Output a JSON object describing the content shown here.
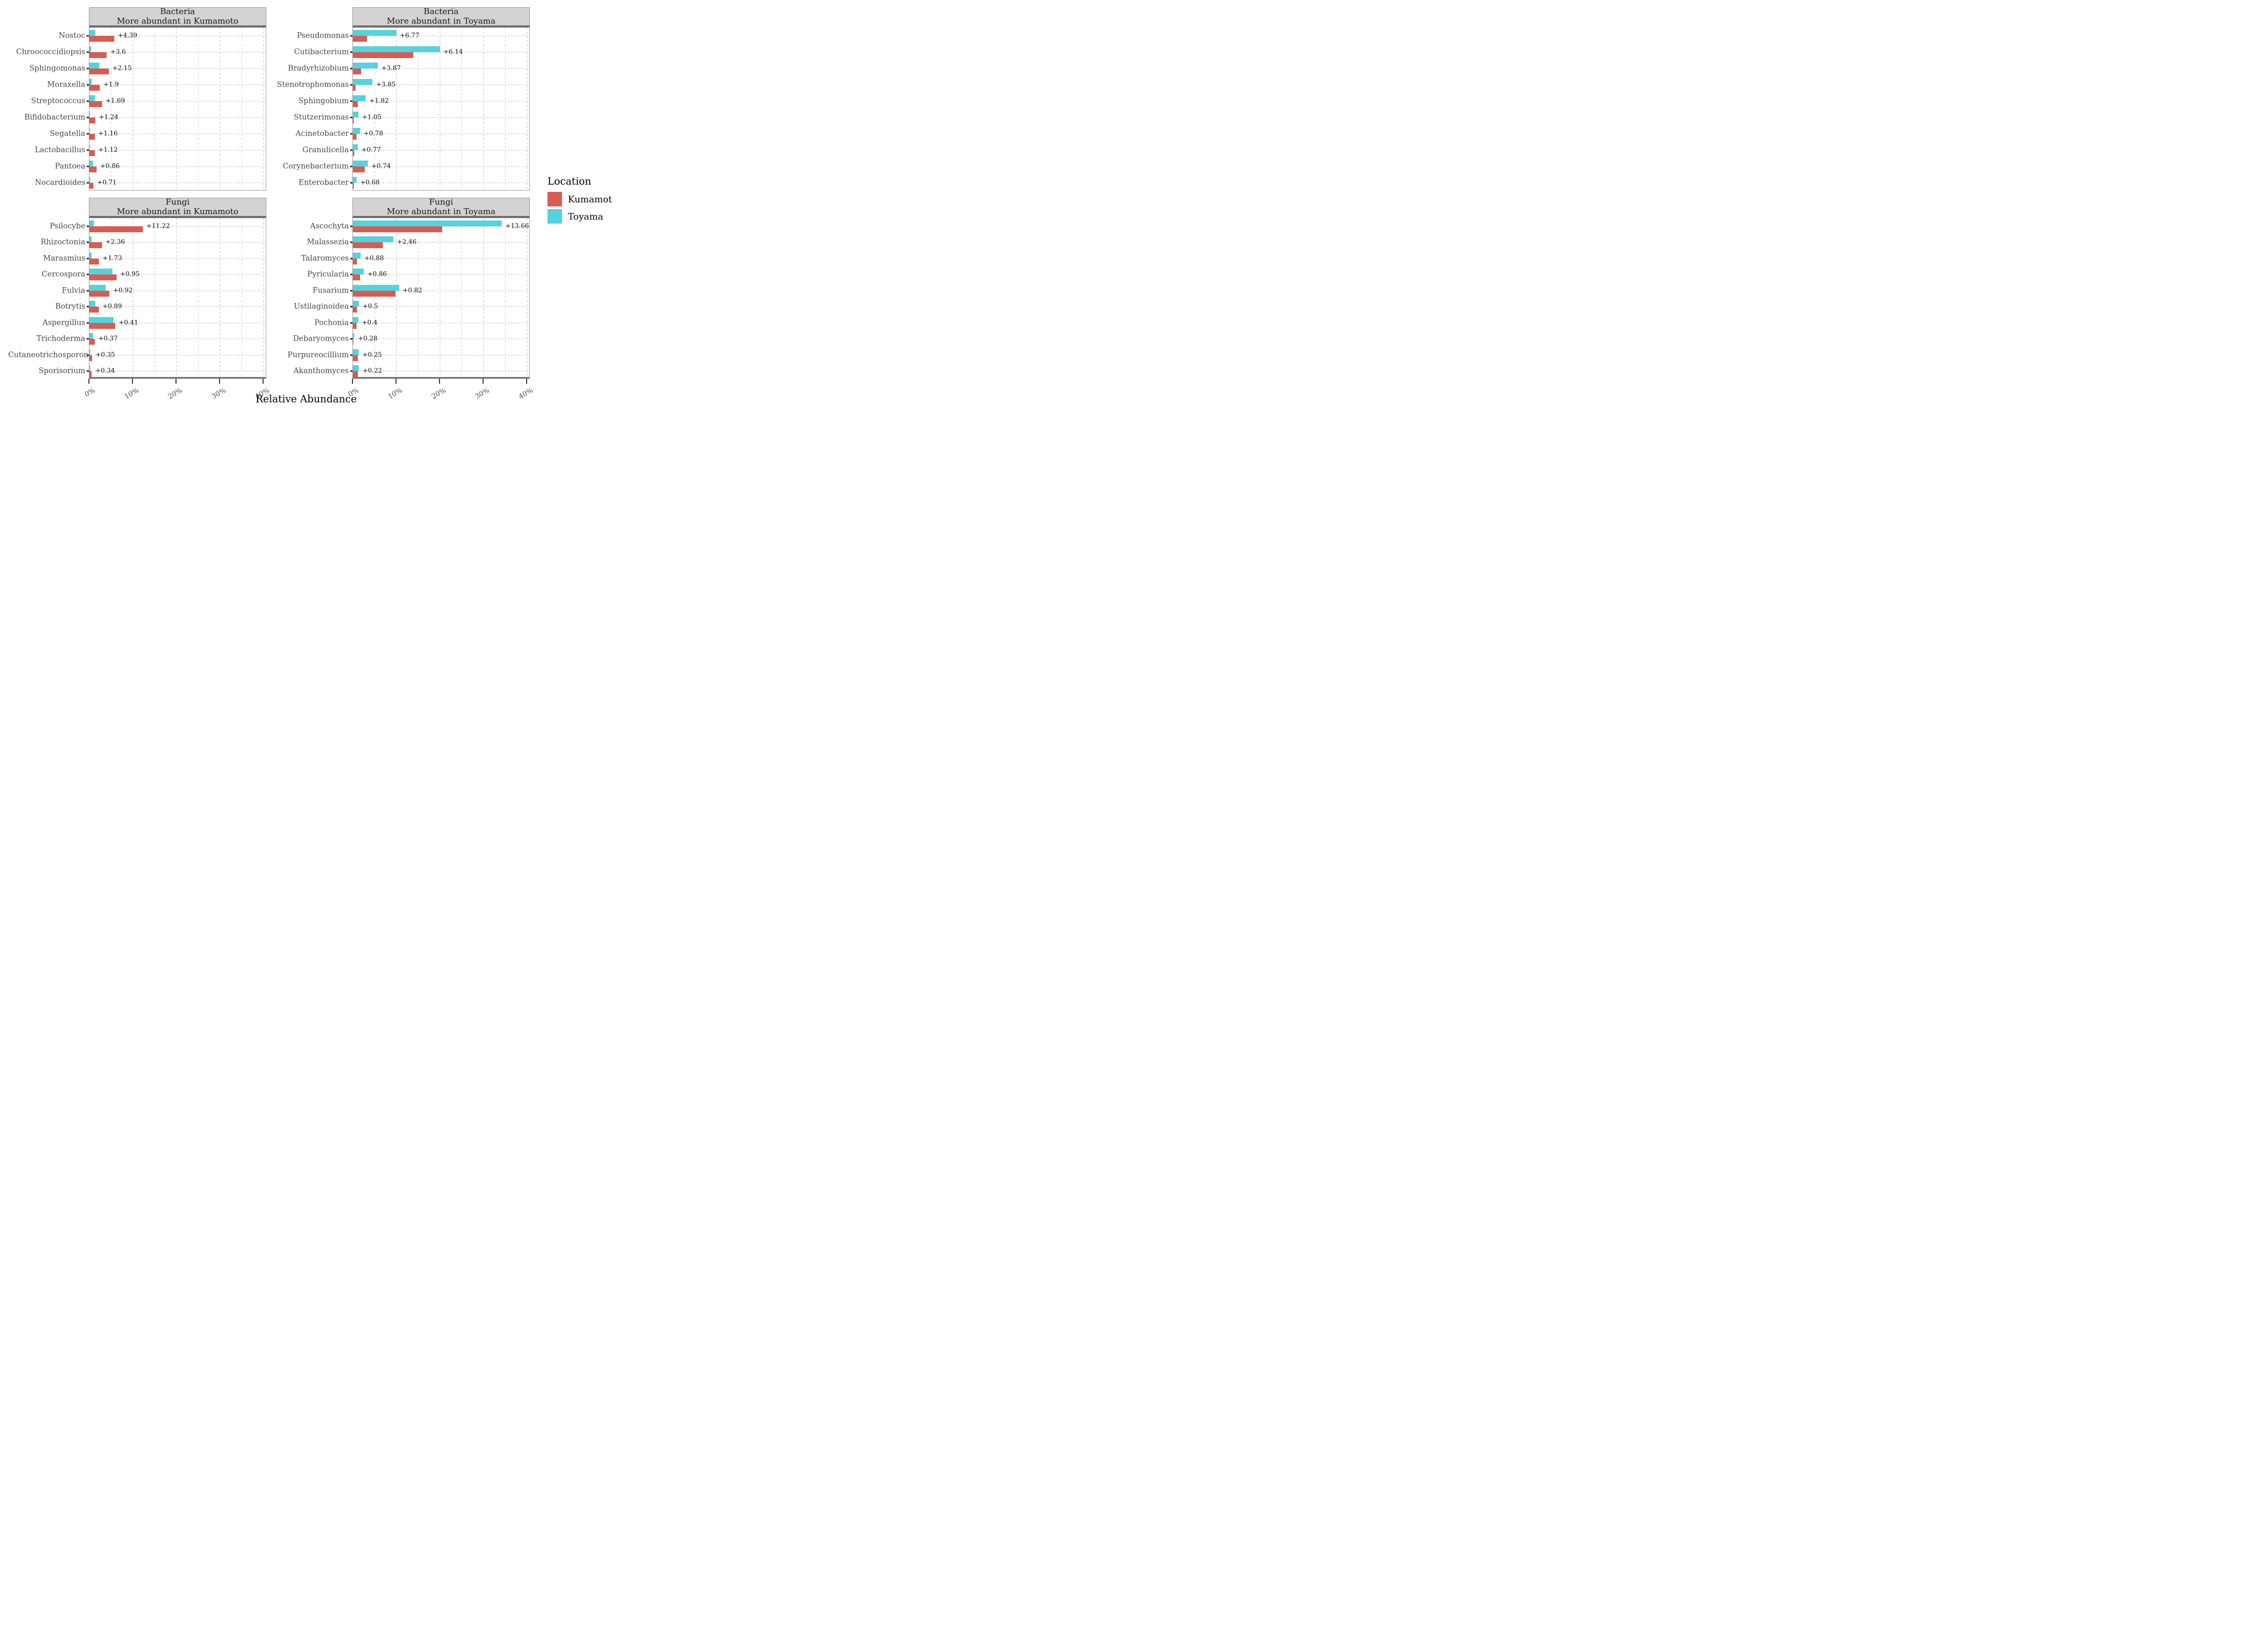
{
  "figure": {
    "background": "#ffffff",
    "axis_title": "Relative Abundance"
  },
  "legend": {
    "title": "Location",
    "items": [
      {
        "label": "Kumamoto",
        "color": "#d85c52"
      },
      {
        "label": "Toyama",
        "color": "#54d3dc"
      }
    ]
  },
  "chart_data": {
    "type": "bar",
    "orientation": "horizontal",
    "xlabel": "Relative Abundance",
    "x_ticks": [
      {
        "value": 0,
        "label": "0%"
      },
      {
        "value": 10,
        "label": "10%"
      },
      {
        "value": 20,
        "label": "20%"
      },
      {
        "value": 30,
        "label": "30%"
      },
      {
        "value": 40,
        "label": "40%"
      }
    ],
    "xlim": [
      0,
      40.7
    ],
    "grid": {
      "vertical_major": [
        10,
        20,
        30,
        40
      ],
      "vertical_minor": [
        5,
        15,
        25,
        35
      ],
      "horizontal": "per-row-dotted"
    },
    "series_colors": {
      "Kumamoto": "#d85c52",
      "Toyama": "#54d3dc"
    },
    "facets": [
      {
        "id": "bacteria-kumamoto",
        "col": 0,
        "row": 0,
        "title_line1": "Bacteria",
        "title_line2": "More abundant in Kumamoto",
        "rows": [
          {
            "taxon": "Nostoc",
            "kumamoto": 5.69,
            "toyama": 1.3,
            "diff_label": "+4.39"
          },
          {
            "taxon": "Chroococcidiopsis",
            "kumamoto": 4.0,
            "toyama": 0.4,
            "diff_label": "+3.6"
          },
          {
            "taxon": "Sphingomonas",
            "kumamoto": 4.45,
            "toyama": 2.3,
            "diff_label": "+2.15"
          },
          {
            "taxon": "Moraxella",
            "kumamoto": 2.4,
            "toyama": 0.5,
            "diff_label": "+1.9"
          },
          {
            "taxon": "Streptococcus",
            "kumamoto": 2.89,
            "toyama": 1.2,
            "diff_label": "+1.69"
          },
          {
            "taxon": "Bifidobacterium",
            "kumamoto": 1.34,
            "toyama": 0.1,
            "diff_label": "+1.24"
          },
          {
            "taxon": "Segatella",
            "kumamoto": 1.21,
            "toyama": 0.05,
            "diff_label": "+1.16"
          },
          {
            "taxon": "Lactobacillus",
            "kumamoto": 1.22,
            "toyama": 0.1,
            "diff_label": "+1.12"
          },
          {
            "taxon": "Pantoea",
            "kumamoto": 1.66,
            "toyama": 0.8,
            "diff_label": "+0.86"
          },
          {
            "taxon": "Nocardioides",
            "kumamoto": 0.96,
            "toyama": 0.25,
            "diff_label": "+0.71"
          }
        ]
      },
      {
        "id": "bacteria-toyama",
        "col": 1,
        "row": 0,
        "title_line1": "Bacteria",
        "title_line2": "More abundant in Toyama",
        "rows": [
          {
            "taxon": "Pseudomonas",
            "kumamoto": 3.18,
            "toyama": 9.95,
            "diff_label": "+6.77"
          },
          {
            "taxon": "Cutibacterium",
            "kumamoto": 13.81,
            "toyama": 19.95,
            "diff_label": "+6.14"
          },
          {
            "taxon": "Bradyrhizobium",
            "kumamoto": 1.83,
            "toyama": 5.7,
            "diff_label": "+3.87"
          },
          {
            "taxon": "Stenotrophomonas",
            "kumamoto": 0.65,
            "toyama": 4.5,
            "diff_label": "+3.85"
          },
          {
            "taxon": "Sphingobium",
            "kumamoto": 1.13,
            "toyama": 2.95,
            "diff_label": "+1.82"
          },
          {
            "taxon": "Stutzerimonas",
            "kumamoto": 0.22,
            "toyama": 1.27,
            "diff_label": "+1.05"
          },
          {
            "taxon": "Acinetobacter",
            "kumamoto": 0.85,
            "toyama": 1.63,
            "diff_label": "+0.78"
          },
          {
            "taxon": "Granulicella",
            "kumamoto": 0.35,
            "toyama": 1.12,
            "diff_label": "+0.77"
          },
          {
            "taxon": "Corynebacterium",
            "kumamoto": 2.66,
            "toyama": 3.4,
            "diff_label": "+0.74"
          },
          {
            "taxon": "Enterobacter",
            "kumamoto": 0.17,
            "toyama": 0.85,
            "diff_label": "+0.68"
          }
        ]
      },
      {
        "id": "fungi-kumamoto",
        "col": 0,
        "row": 1,
        "title_line1": "Fungi",
        "title_line2": "More abundant in Kumamoto",
        "rows": [
          {
            "taxon": "Psilocybe",
            "kumamoto": 12.27,
            "toyama": 1.05,
            "diff_label": "+11.22"
          },
          {
            "taxon": "Rhizoctonia",
            "kumamoto": 2.86,
            "toyama": 0.5,
            "diff_label": "+2.36"
          },
          {
            "taxon": "Marasmius",
            "kumamoto": 2.2,
            "toyama": 0.47,
            "diff_label": "+1.73"
          },
          {
            "taxon": "Cercospora",
            "kumamoto": 6.25,
            "toyama": 5.3,
            "diff_label": "+0.95"
          },
          {
            "taxon": "Fulvia",
            "kumamoto": 4.62,
            "toyama": 3.7,
            "diff_label": "+0.92"
          },
          {
            "taxon": "Botrytis",
            "kumamoto": 2.19,
            "toyama": 1.3,
            "diff_label": "+0.89"
          },
          {
            "taxon": "Aspergillus",
            "kumamoto": 5.91,
            "toyama": 5.5,
            "diff_label": "+0.41"
          },
          {
            "taxon": "Trichoderma",
            "kumamoto": 1.22,
            "toyama": 0.85,
            "diff_label": "+0.37"
          },
          {
            "taxon": "Cutaneotrichosporon",
            "kumamoto": 0.6,
            "toyama": 0.25,
            "diff_label": "+0.35"
          },
          {
            "taxon": "Sporisorium",
            "kumamoto": 0.56,
            "toyama": 0.22,
            "diff_label": "+0.34"
          }
        ]
      },
      {
        "id": "fungi-toyama",
        "col": 1,
        "row": 1,
        "title_line1": "Fungi",
        "title_line2": "More abundant in Toyama",
        "rows": [
          {
            "taxon": "Ascochyta",
            "kumamoto": 20.54,
            "toyama": 34.2,
            "diff_label": "+13.66"
          },
          {
            "taxon": "Malassezia",
            "kumamoto": 6.84,
            "toyama": 9.3,
            "diff_label": "+2.46"
          },
          {
            "taxon": "Talaromyces",
            "kumamoto": 0.92,
            "toyama": 1.8,
            "diff_label": "+0.88"
          },
          {
            "taxon": "Pyricularia",
            "kumamoto": 1.64,
            "toyama": 2.5,
            "diff_label": "+0.86"
          },
          {
            "taxon": "Fusarium",
            "kumamoto": 9.78,
            "toyama": 10.6,
            "diff_label": "+0.82"
          },
          {
            "taxon": "Ustilaginoidea",
            "kumamoto": 0.9,
            "toyama": 1.4,
            "diff_label": "+0.5"
          },
          {
            "taxon": "Pochonia",
            "kumamoto": 0.85,
            "toyama": 1.25,
            "diff_label": "+0.4"
          },
          {
            "taxon": "Debaryomyces",
            "kumamoto": 0.05,
            "toyama": 0.33,
            "diff_label": "+0.28"
          },
          {
            "taxon": "Purpureocillium",
            "kumamoto": 1.1,
            "toyama": 1.35,
            "diff_label": "+0.25"
          },
          {
            "taxon": "Akanthomyces",
            "kumamoto": 1.18,
            "toyama": 1.4,
            "diff_label": "+0.22"
          }
        ]
      }
    ]
  }
}
